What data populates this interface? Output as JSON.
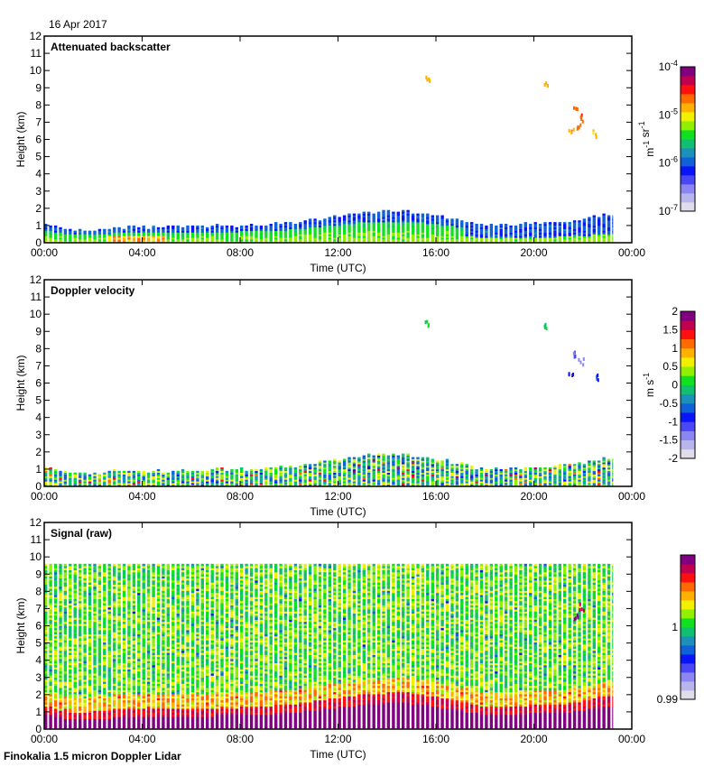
{
  "header": {
    "date": "16 Apr 2017"
  },
  "footer": {
    "instrument": "Finokalia 1.5 micron Doppler Lidar"
  },
  "chart_data": [
    {
      "type": "heatmap",
      "title": "Attenuated backscatter",
      "xlabel": "Time (UTC)",
      "ylabel": "Height (km)",
      "xlim": [
        0,
        24
      ],
      "ylim": [
        0,
        12
      ],
      "xticks": [
        "00:00",
        "04:00",
        "08:00",
        "12:00",
        "16:00",
        "20:00",
        "00:00"
      ],
      "yticks": [
        "0",
        "1",
        "2",
        "3",
        "4",
        "5",
        "6",
        "7",
        "8",
        "9",
        "10",
        "11",
        "12"
      ],
      "colorbar": {
        "scale": "log",
        "range": [
          1e-07,
          0.0001
        ],
        "ticks": [
          {
            "base": "10",
            "exp": "-4"
          },
          {
            "base": "10",
            "exp": "-5"
          },
          {
            "base": "10",
            "exp": "-6"
          },
          {
            "base": "10",
            "exp": "-7"
          }
        ],
        "unit_parts": [
          {
            "base": "m",
            "exp": "-1"
          },
          {
            "base": " sr",
            "exp": "-1"
          }
        ]
      },
      "layer_top_km": [
        {
          "t": 0,
          "h": 1.0
        },
        {
          "t": 1,
          "h": 0.6
        },
        {
          "t": 2,
          "h": 0.6
        },
        {
          "t": 3,
          "h": 0.75
        },
        {
          "t": 4,
          "h": 0.8
        },
        {
          "t": 5,
          "h": 0.75
        },
        {
          "t": 6,
          "h": 0.8
        },
        {
          "t": 7,
          "h": 0.85
        },
        {
          "t": 8,
          "h": 0.85
        },
        {
          "t": 9,
          "h": 0.95
        },
        {
          "t": 10,
          "h": 1.0
        },
        {
          "t": 11,
          "h": 1.2
        },
        {
          "t": 12,
          "h": 1.4
        },
        {
          "t": 13,
          "h": 1.6
        },
        {
          "t": 14,
          "h": 1.7
        },
        {
          "t": 15,
          "h": 1.7
        },
        {
          "t": 16,
          "h": 1.5
        },
        {
          "t": 17,
          "h": 1.2
        },
        {
          "t": 18,
          "h": 0.9
        },
        {
          "t": 19,
          "h": 0.9
        },
        {
          "t": 20,
          "h": 1.0
        },
        {
          "t": 21,
          "h": 1.0
        },
        {
          "t": 22,
          "h": 1.2
        },
        {
          "t": 23,
          "h": 1.5
        }
      ],
      "data_end_hour": 23.3,
      "features": [
        {
          "t": 15.6,
          "h": 9.5,
          "level": 0.72
        },
        {
          "t": 20.5,
          "h": 9.3,
          "level": 0.72
        },
        {
          "t": 21.7,
          "h": 7.8,
          "level": 0.78
        },
        {
          "t": 21.9,
          "h": 7.3,
          "level": 0.8
        },
        {
          "t": 21.5,
          "h": 6.6,
          "level": 0.75
        },
        {
          "t": 21.8,
          "h": 6.9,
          "level": 0.75
        },
        {
          "t": 22.5,
          "h": 6.4,
          "level": 0.7
        }
      ]
    },
    {
      "type": "heatmap",
      "title": "Doppler velocity",
      "xlabel": "Time (UTC)",
      "ylabel": "Height (km)",
      "xlim": [
        0,
        24
      ],
      "ylim": [
        0,
        12
      ],
      "xticks": [
        "00:00",
        "04:00",
        "08:00",
        "12:00",
        "16:00",
        "20:00",
        "00:00"
      ],
      "yticks": [
        "0",
        "1",
        "2",
        "3",
        "4",
        "5",
        "6",
        "7",
        "8",
        "9",
        "10",
        "11",
        "12"
      ],
      "colorbar": {
        "scale": "linear",
        "range": [
          -2,
          2
        ],
        "ticks": [
          "2",
          "1.5",
          "1",
          "0.5",
          "0",
          "-0.5",
          "-1",
          "-1.5",
          "-2"
        ],
        "unit_parts": [
          {
            "base": "m s",
            "exp": "-1"
          }
        ]
      },
      "data_end_hour": 23.3,
      "features": [
        {
          "t": 15.6,
          "h": 9.5,
          "level": 0.5
        },
        {
          "t": 20.5,
          "h": 9.3,
          "level": 0.5
        },
        {
          "t": 21.7,
          "h": 7.8,
          "level": 0.2
        },
        {
          "t": 21.9,
          "h": 7.3,
          "level": 0.15
        },
        {
          "t": 21.5,
          "h": 6.6,
          "level": 0.25
        },
        {
          "t": 22.5,
          "h": 6.4,
          "level": 0.3
        }
      ]
    },
    {
      "type": "heatmap",
      "title": "Signal (raw)",
      "xlabel": "Time (UTC)",
      "ylabel": "Height (km)",
      "xlim": [
        0,
        24
      ],
      "ylim": [
        0,
        12
      ],
      "xticks": [
        "00:00",
        "04:00",
        "08:00",
        "12:00",
        "16:00",
        "20:00",
        "00:00"
      ],
      "yticks": [
        "0",
        "1",
        "2",
        "3",
        "4",
        "5",
        "6",
        "7",
        "8",
        "9",
        "10",
        "11",
        "12"
      ],
      "colorbar": {
        "scale": "linear",
        "range": [
          0.99,
          1.01
        ],
        "ticks": [
          "1",
          "0.99"
        ],
        "unit_parts": []
      },
      "data_top_km": 9.55,
      "data_end_hour": 23.3,
      "features": [
        {
          "t": 21.7,
          "h": 6.6,
          "level": 0.95
        },
        {
          "t": 21.9,
          "h": 7.2,
          "level": 0.9
        }
      ]
    }
  ],
  "colormap": [
    "#e0dcea",
    "#b8b4ee",
    "#8c86f2",
    "#4a48f6",
    "#0a14f8",
    "#1060d8",
    "#1c90b8",
    "#10c070",
    "#10e020",
    "#90f000",
    "#f0f000",
    "#ffb000",
    "#ff6a00",
    "#ff1010",
    "#c00050",
    "#800080"
  ]
}
